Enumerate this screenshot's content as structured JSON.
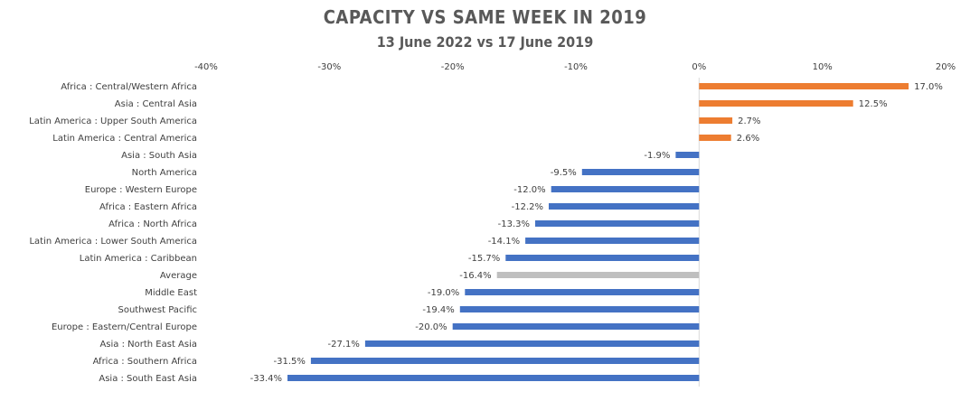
{
  "chart_data": {
    "type": "bar",
    "orientation": "horizontal",
    "title": "CAPACITY VS SAME WEEK IN 2019",
    "subtitle": "13 June 2022 vs 17 June 2019",
    "xlabel": "",
    "ylabel": "",
    "xlim": [
      -40,
      20
    ],
    "x_ticks": [
      -40,
      -30,
      -20,
      -10,
      0,
      10,
      20
    ],
    "x_tick_labels": [
      "-40%",
      "-30%",
      "-20%",
      "-10%",
      "0%",
      "10%",
      "20%"
    ],
    "x_axis_position": "top",
    "grid": false,
    "legend": "none",
    "colors": {
      "positive": "#ED7D31",
      "negative": "#4472C4",
      "average": "#BFBFBF",
      "axis": "#D9D9D9"
    },
    "categories": [
      "Africa : Central/Western Africa",
      "Asia : Central Asia",
      "Latin America : Upper South America",
      "Latin America : Central America",
      "Asia : South Asia",
      "North America",
      "Europe : Western Europe",
      "Africa : Eastern Africa",
      "Africa : North Africa",
      "Latin America : Lower South America",
      "Latin America : Caribbean",
      "Average",
      "Middle East",
      "Southwest Pacific",
      "Europe : Eastern/Central Europe",
      "Asia : North East Asia",
      "Africa : Southern Africa",
      "Asia : South East Asia"
    ],
    "values": [
      17.0,
      12.5,
      2.7,
      2.6,
      -1.9,
      -9.5,
      -12.0,
      -12.2,
      -13.3,
      -14.1,
      -15.7,
      -16.4,
      -19.0,
      -19.4,
      -20.0,
      -27.1,
      -31.5,
      -33.4
    ],
    "data_labels": [
      "17.0%",
      "12.5%",
      "2.7%",
      "2.6%",
      "-1.9%",
      "-9.5%",
      "-12.0%",
      "-12.2%",
      "-13.3%",
      "-14.1%",
      "-15.7%",
      "-16.4%",
      "-19.0%",
      "-19.4%",
      "-20.0%",
      "-27.1%",
      "-31.5%",
      "-33.4%"
    ],
    "highlight_category": "Average"
  }
}
